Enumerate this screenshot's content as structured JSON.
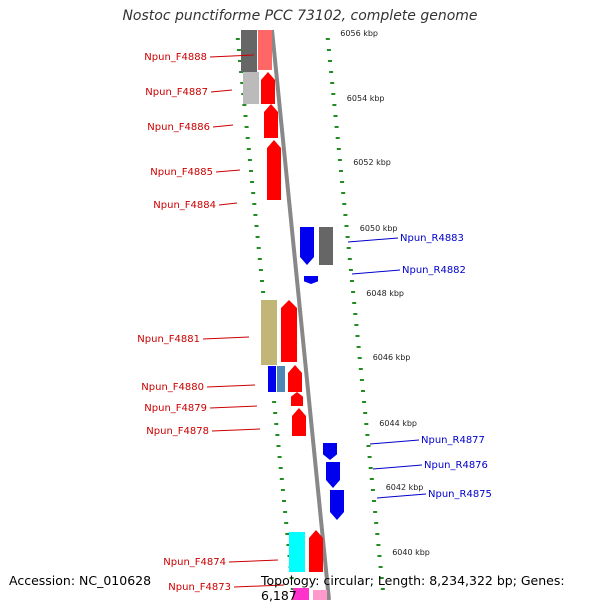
{
  "title": "Nostoc punctiforme PCC 73102, complete genome",
  "footer": {
    "accession": "Accession: NC_010628",
    "info": "Topology: circular; Length: 8,234,322 bp; Genes: 6,187"
  },
  "colors": {
    "forward_label": "#cc0000",
    "reverse_label": "#0000cc",
    "backbone": "#888888",
    "tick": "#228b22",
    "red": "#ff0000",
    "blue": "#0000ee",
    "grey_dark": "#666666",
    "grey_light": "#bbbbbb",
    "khaki": "#c2b578",
    "steel": "#4f86b8",
    "cyan": "#00ffff",
    "pink": "#ff99cc",
    "magenta": "#ff33cc"
  },
  "kbp_labels": [
    "6056 kbp",
    "6054 kbp",
    "6052 kbp",
    "6050 kbp",
    "6048 kbp",
    "6046 kbp",
    "6044 kbp",
    "6042 kbp",
    "6040 kbp"
  ],
  "forward_genes": [
    "Npun_F4888",
    "Npun_F4887",
    "Npun_F4886",
    "Npun_F4885",
    "Npun_F4884",
    "Npun_F4881",
    "Npun_F4880",
    "Npun_F4879",
    "Npun_F4878",
    "Npun_F4874",
    "Npun_F4873"
  ],
  "reverse_genes": [
    "Npun_R4883",
    "Npun_R4882",
    "Npun_R4877",
    "Npun_R4876",
    "Npun_R4875"
  ]
}
